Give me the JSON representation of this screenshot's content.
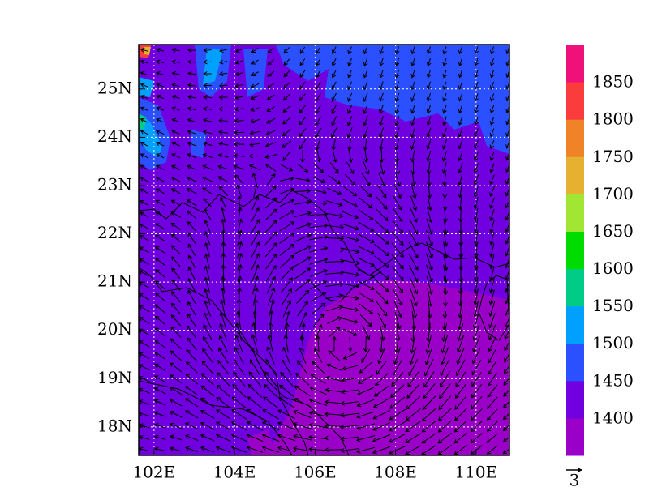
{
  "map": {
    "lon_ticks": [
      {
        "value": 102,
        "label": "102E"
      },
      {
        "value": 104,
        "label": "104E"
      },
      {
        "value": 106,
        "label": "106E"
      },
      {
        "value": 108,
        "label": "108E"
      },
      {
        "value": 110,
        "label": "110E"
      }
    ],
    "lat_ticks": [
      {
        "value": 18,
        "label": "18N"
      },
      {
        "value": 19,
        "label": "19N"
      },
      {
        "value": 20,
        "label": "20N"
      },
      {
        "value": 21,
        "label": "21N"
      },
      {
        "value": 22,
        "label": "22N"
      },
      {
        "value": 23,
        "label": "23N"
      },
      {
        "value": 24,
        "label": "24N"
      },
      {
        "value": 25,
        "label": "25N"
      }
    ],
    "xlim": [
      101.62,
      110.83
    ],
    "ylim": [
      17.41,
      25.92
    ],
    "grid": true,
    "colorbar": {
      "levels": [
        1400,
        1450,
        1500,
        1550,
        1600,
        1650,
        1700,
        1750,
        1800,
        1850
      ],
      "colors": [
        "#9b00c8",
        "#7000e0",
        "#2a50ff",
        "#00a0ff",
        "#00cc88",
        "#00dc00",
        "#a0e632",
        "#e6b030",
        "#f08228",
        "#fa3c3c",
        "#f0107a"
      ]
    },
    "reference_vector": "3"
  }
}
